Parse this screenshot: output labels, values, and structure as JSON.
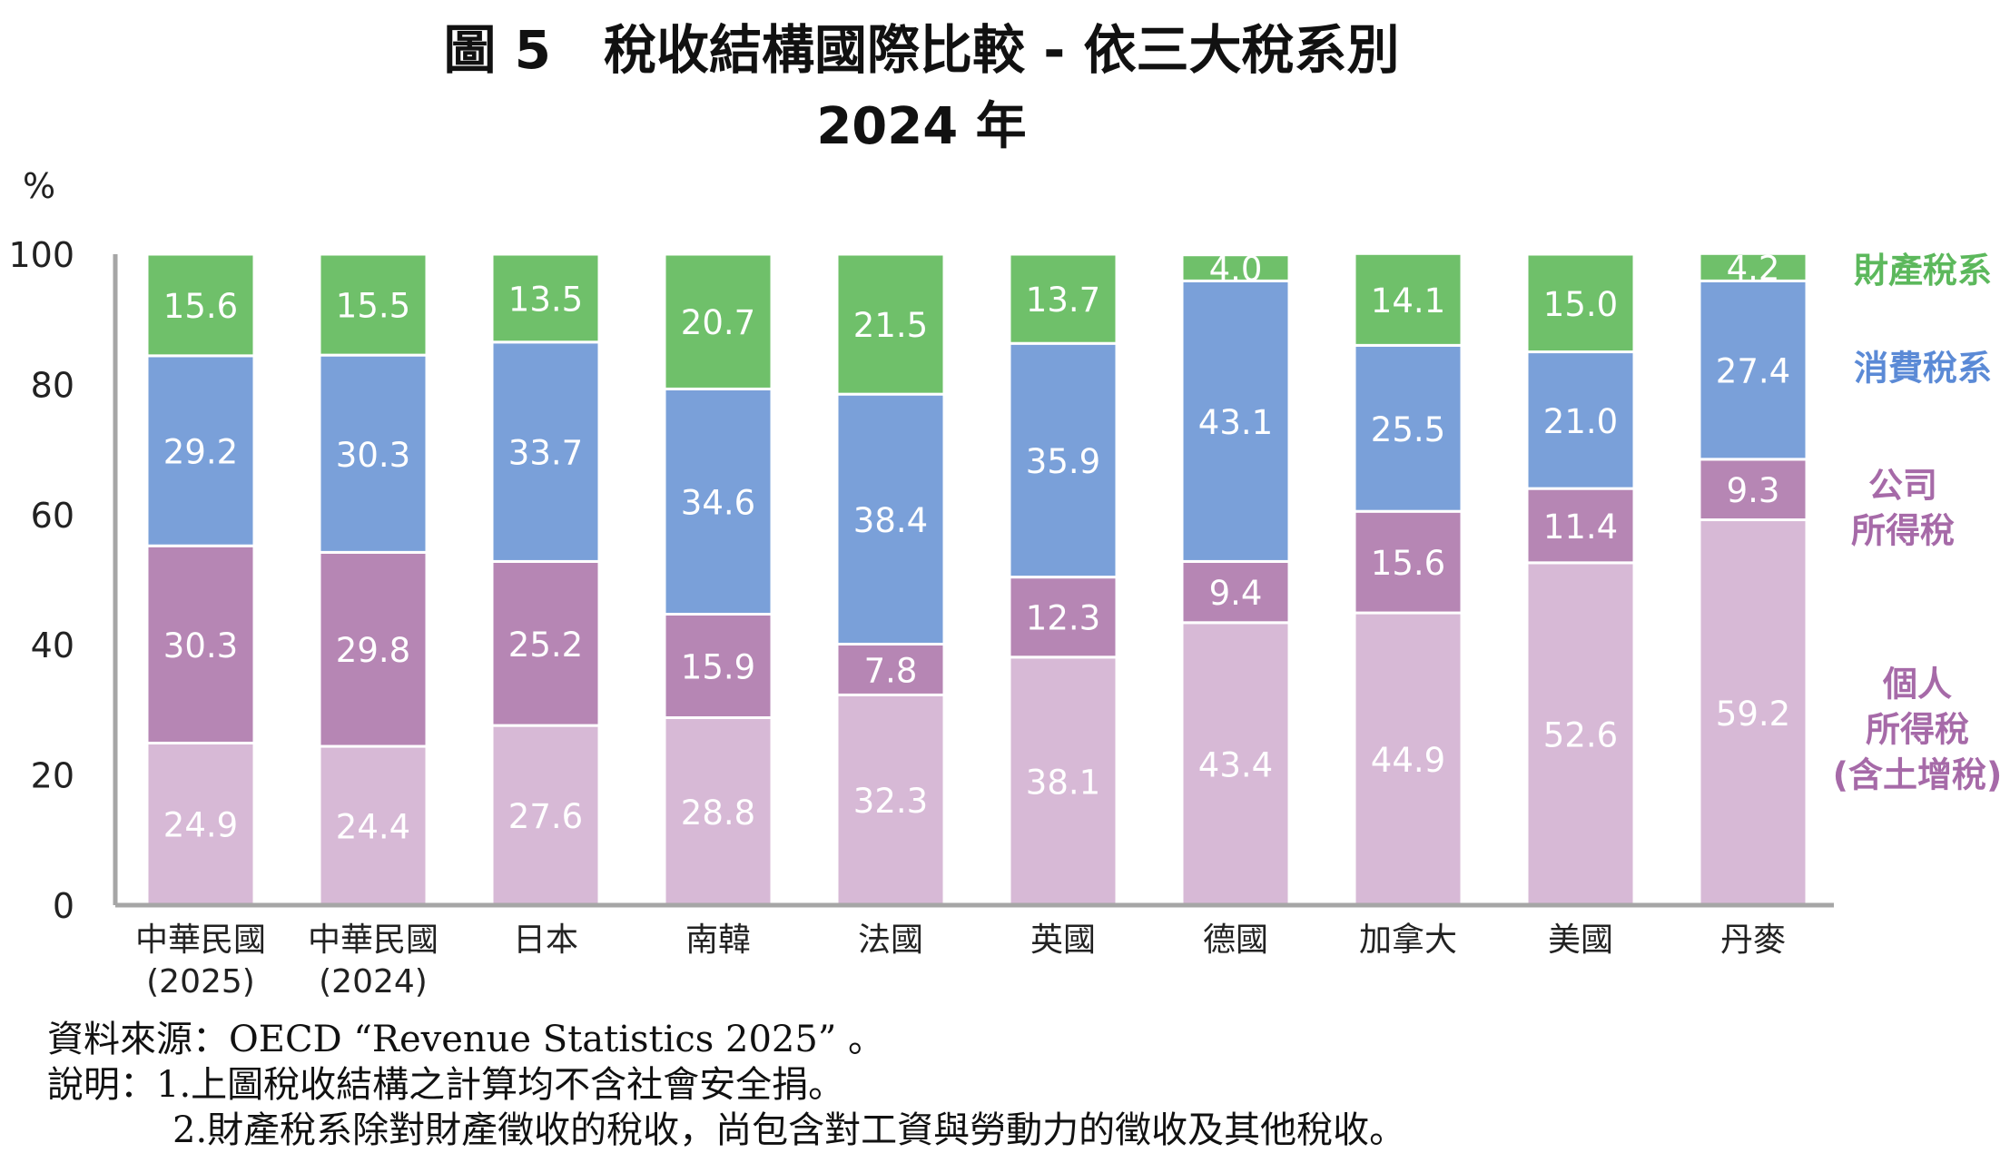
{
  "title_line1": "圖 5　稅收結構國際比較 - 依三大稅系別",
  "title_line2": "2024 年",
  "source_note": "資料來源：OECD “Revenue Statistics 2025” 。",
  "note_1": "說明：1.上圖稅收結構之計算均不含社會安全捐。",
  "note_2": "2.財產稅系除對財產徵收的稅收，尚包含對工資與勞動力的徵收及其他稅收。",
  "chart_data": {
    "type": "bar",
    "stacked": true,
    "y_unit": "%",
    "ylim": [
      0,
      100
    ],
    "yticks": [
      0,
      20,
      40,
      60,
      80,
      100
    ],
    "categories": [
      [
        "中華民國",
        "(2025)"
      ],
      [
        "中華民國",
        "(2024)"
      ],
      [
        "日本"
      ],
      [
        "南韓"
      ],
      [
        "法國"
      ],
      [
        "英國"
      ],
      [
        "德國"
      ],
      [
        "加拿大"
      ],
      [
        "美國"
      ],
      [
        "丹麥"
      ]
    ],
    "series": [
      {
        "name": [
          "個人",
          "所得稅",
          "(含土增稅)"
        ],
        "color": "#d7b9d6",
        "label_color": "#ffffff",
        "legend_color": "#a66aa8",
        "values": [
          24.9,
          24.4,
          27.6,
          28.8,
          32.3,
          38.1,
          43.4,
          44.9,
          52.6,
          59.2
        ]
      },
      {
        "name": [
          "公司",
          "所得稅"
        ],
        "color": "#b686b4",
        "label_color": "#ffffff",
        "legend_color": "#a66aa8",
        "values": [
          30.3,
          29.8,
          25.2,
          15.9,
          7.8,
          12.3,
          9.4,
          15.6,
          11.4,
          9.3
        ]
      },
      {
        "name": [
          "消費稅系"
        ],
        "color": "#7aa0d9",
        "label_color": "#ffffff",
        "legend_color": "#5b8ad6",
        "values": [
          29.2,
          30.3,
          33.7,
          34.6,
          38.4,
          35.9,
          43.1,
          25.5,
          21.0,
          27.4
        ]
      },
      {
        "name": [
          "財產稅系"
        ],
        "color": "#6fc06a",
        "label_color": "#ffffff",
        "legend_color": "#5cb85c",
        "values": [
          15.6,
          15.5,
          13.5,
          20.7,
          21.5,
          13.7,
          4.0,
          14.1,
          15.0,
          4.2
        ]
      }
    ]
  }
}
